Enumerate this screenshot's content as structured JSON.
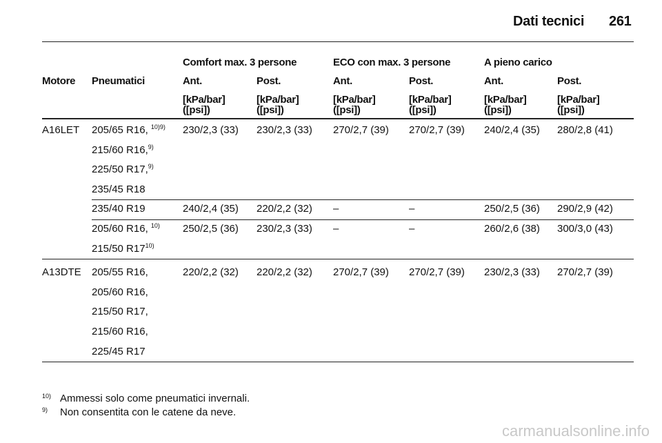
{
  "header": {
    "title": "Dati tecnici",
    "page": "261"
  },
  "table": {
    "groups": [
      "Comfort max. 3 persone",
      "ECO con max. 3 persone",
      "A pieno carico"
    ],
    "columns": [
      "Motore",
      "Pneumatici",
      "Ant.",
      "Post.",
      "Ant.",
      "Post.",
      "Ant.",
      "Post."
    ],
    "units": [
      [
        "[kPa/bar]",
        "([psi])"
      ],
      [
        "[kPa/bar]",
        "([psi])"
      ],
      [
        "[kPa/bar]",
        "([psi])"
      ],
      [
        "[kPa/bar]",
        "([psi])"
      ],
      [
        "[kPa/bar]",
        "([psi])"
      ],
      [
        "[kPa/bar]",
        "([psi])"
      ]
    ],
    "rows": [
      {
        "motore": "A16LET",
        "tires": [
          {
            "text": "205/65 R16, ",
            "sup": "10)9)"
          },
          {
            "text": "215/60 R16,",
            "sup": "9)"
          },
          {
            "text": "225/50 R17,",
            "sup": "9)"
          },
          {
            "text": "235/45 R18"
          }
        ],
        "values": [
          "230/2,3 (33)",
          "230/2,3 (33)",
          "270/2,7 (39)",
          "270/2,7 (39)",
          "240/2,4 (35)",
          "280/2,8 (41)"
        ]
      },
      {
        "tires": [
          {
            "text": "235/40 R19"
          }
        ],
        "values": [
          "240/2,4 (35)",
          "220/2,2 (32)",
          "–",
          "–",
          "250/2,5 (36)",
          "290/2,9 (42)"
        ]
      },
      {
        "tires": [
          {
            "text": "205/60 R16, ",
            "sup": "10)"
          },
          {
            "text": "215/50 R17",
            "sup": "10)"
          }
        ],
        "values": [
          "250/2,5 (36)",
          "230/2,3 (33)",
          "–",
          "–",
          "260/2,6 (38)",
          "300/3,0 (43)"
        ]
      },
      {
        "motore": "A13DTE",
        "tires": [
          {
            "text": "205/55 R16,"
          },
          {
            "text": "205/60 R16,"
          },
          {
            "text": "215/50 R17,"
          },
          {
            "text": "215/60 R16,"
          },
          {
            "text": "225/45 R17"
          }
        ],
        "values": [
          "220/2,2 (32)",
          "220/2,2 (32)",
          "270/2,7 (39)",
          "270/2,7 (39)",
          "230/2,3 (33)",
          "270/2,7 (39)"
        ]
      }
    ]
  },
  "footnotes": [
    {
      "mark": "10)",
      "text": "Ammessi solo come pneumatici invernali."
    },
    {
      "mark": "9)",
      "text": "Non consentita con le catene da neve."
    }
  ],
  "watermark": "carmanualsonline.info"
}
